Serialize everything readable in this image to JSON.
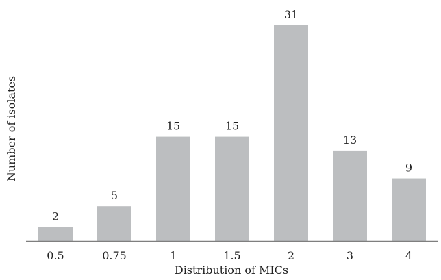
{
  "chart_data": {
    "type": "bar",
    "title": "",
    "xlabel": "Distribution of MICs",
    "ylabel": "Number of isolates",
    "categories": [
      "0.5",
      "0.75",
      "1",
      "1.5",
      "2",
      "3",
      "4"
    ],
    "values": [
      2,
      5,
      15,
      15,
      31,
      13,
      9
    ],
    "ylim": [
      0,
      31
    ],
    "grid": false,
    "legend": "none",
    "bar_color": "#bcbec0",
    "axis_color": "#7f7f7f"
  }
}
